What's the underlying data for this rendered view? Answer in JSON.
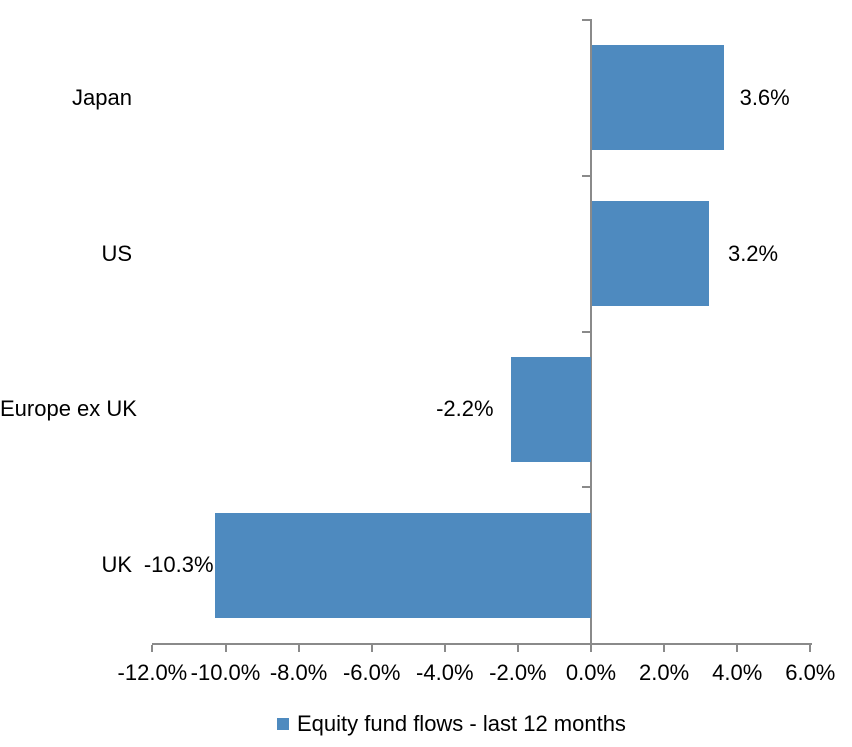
{
  "chart_data": {
    "type": "bar",
    "orientation": "horizontal",
    "title": "",
    "xlabel": "",
    "ylabel": "",
    "categories": [
      "Japan",
      "US",
      "Europe ex UK",
      "UK"
    ],
    "values": [
      3.6,
      3.2,
      -2.2,
      -10.3
    ],
    "data_labels": [
      "3.6%",
      "3.2%",
      "-2.2%",
      "-10.3%"
    ],
    "series": [
      {
        "name": "Equity fund flows - last 12 months",
        "values": [
          3.6,
          3.2,
          -2.2,
          -10.3
        ]
      }
    ],
    "x_ticks": [
      {
        "value": -12,
        "label": "-12.0%"
      },
      {
        "value": -10,
        "label": "-10.0%"
      },
      {
        "value": -8,
        "label": "-8.0%"
      },
      {
        "value": -6,
        "label": "-6.0%"
      },
      {
        "value": -4,
        "label": "-4.0%"
      },
      {
        "value": -2,
        "label": "-2.0%"
      },
      {
        "value": 0,
        "label": "0.0%"
      },
      {
        "value": 2,
        "label": "2.0%"
      },
      {
        "value": 4,
        "label": "4.0%"
      },
      {
        "value": 6,
        "label": "6.0%"
      }
    ],
    "xlim": [
      -12,
      6
    ],
    "grid": false,
    "legend_position": "bottom",
    "bar_color": "#4E8ABF",
    "axis_color": "#8A8A8A",
    "text_color": "#000000"
  },
  "legend": {
    "label": "Equity fund flows - last 12 months"
  }
}
